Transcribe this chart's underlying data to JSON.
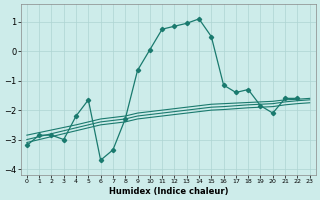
{
  "xlabel": "Humidex (Indice chaleur)",
  "bg_color": "#cdecea",
  "grid_color": "#aed4d2",
  "line_color": "#1a7a6e",
  "xlim": [
    -0.5,
    23.5
  ],
  "ylim": [
    -4.2,
    1.6
  ],
  "yticks": [
    -4,
    -3,
    -2,
    -1,
    0,
    1
  ],
  "xticks": [
    0,
    1,
    2,
    3,
    4,
    5,
    6,
    7,
    8,
    9,
    10,
    11,
    12,
    13,
    14,
    15,
    16,
    17,
    18,
    19,
    20,
    21,
    22,
    23
  ],
  "main_x": [
    0,
    1,
    2,
    3,
    4,
    5,
    6,
    7,
    8,
    9,
    10,
    11,
    12,
    13,
    14,
    15,
    16,
    17,
    18,
    19,
    20,
    21,
    22
  ],
  "main_y": [
    -3.2,
    -2.85,
    -2.85,
    -3.0,
    -2.2,
    -1.65,
    -3.7,
    -3.35,
    -2.3,
    -0.65,
    0.05,
    0.75,
    0.85,
    0.95,
    1.1,
    0.5,
    -1.15,
    -1.4,
    -1.3,
    -1.85,
    -2.1,
    -1.6,
    -1.6
  ],
  "trend_lines": [
    {
      "x": [
        0,
        4,
        5,
        6,
        7,
        8,
        9,
        10,
        11,
        12,
        13,
        14,
        15,
        16,
        17,
        18,
        19,
        20,
        21,
        22,
        23
      ],
      "y": [
        -2.85,
        -2.5,
        -2.4,
        -2.3,
        -2.25,
        -2.2,
        -2.1,
        -2.05,
        -2.0,
        -1.95,
        -1.9,
        -1.85,
        -1.8,
        -1.78,
        -1.76,
        -1.74,
        -1.72,
        -1.7,
        -1.65,
        -1.63,
        -1.6
      ]
    },
    {
      "x": [
        0,
        4,
        5,
        6,
        7,
        8,
        9,
        10,
        11,
        12,
        13,
        14,
        15,
        16,
        17,
        18,
        19,
        20,
        21,
        22,
        23
      ],
      "y": [
        -3.0,
        -2.6,
        -2.5,
        -2.4,
        -2.35,
        -2.3,
        -2.2,
        -2.15,
        -2.1,
        -2.05,
        -2.0,
        -1.95,
        -1.9,
        -1.88,
        -1.85,
        -1.82,
        -1.8,
        -1.78,
        -1.72,
        -1.68,
        -1.65
      ]
    },
    {
      "x": [
        0,
        4,
        5,
        6,
        7,
        8,
        9,
        10,
        11,
        12,
        13,
        14,
        15,
        16,
        17,
        18,
        19,
        20,
        21,
        22,
        23
      ],
      "y": [
        -3.1,
        -2.7,
        -2.6,
        -2.5,
        -2.45,
        -2.4,
        -2.3,
        -2.25,
        -2.2,
        -2.15,
        -2.1,
        -2.05,
        -2.0,
        -1.98,
        -1.95,
        -1.92,
        -1.9,
        -1.88,
        -1.82,
        -1.78,
        -1.75
      ]
    }
  ]
}
